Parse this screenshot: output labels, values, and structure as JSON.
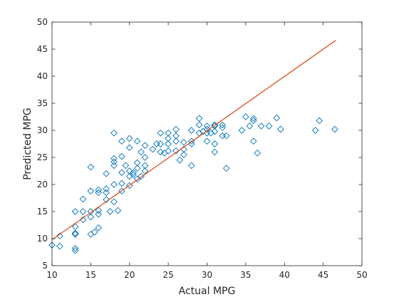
{
  "chart_data": {
    "type": "scatter",
    "title": "",
    "xlabel": "Actual MPG",
    "ylabel": "Predicted MPG",
    "xlim": [
      10,
      50
    ],
    "ylim": [
      5,
      50
    ],
    "xticks": [
      10,
      15,
      20,
      25,
      30,
      35,
      40,
      45,
      50
    ],
    "yticks": [
      5,
      10,
      15,
      20,
      25,
      30,
      35,
      40,
      45,
      50
    ],
    "grid": false,
    "legend": "none",
    "colors": {
      "points": "#0072BD",
      "fit_line": "#D95319",
      "axes": "#262626"
    },
    "series": [
      {
        "kind": "markers",
        "marker": "diamond",
        "points": [
          [
            10,
            8.8
          ],
          [
            11,
            8.6
          ],
          [
            11,
            10.5
          ],
          [
            13,
            7.8
          ],
          [
            13,
            8.2
          ],
          [
            13,
            10.8
          ],
          [
            13,
            11
          ],
          [
            13,
            12.2
          ],
          [
            13,
            15
          ],
          [
            14,
            13.5
          ],
          [
            14,
            15
          ],
          [
            14,
            17.3
          ],
          [
            15,
            10.8
          ],
          [
            15,
            14
          ],
          [
            15,
            15
          ],
          [
            15,
            18.8
          ],
          [
            15,
            23.2
          ],
          [
            15.5,
            11.2
          ],
          [
            16,
            12
          ],
          [
            16,
            14.5
          ],
          [
            16,
            15.2
          ],
          [
            16,
            18.5
          ],
          [
            16,
            19
          ],
          [
            17,
            17.2
          ],
          [
            17,
            18.5
          ],
          [
            17,
            19.2
          ],
          [
            17,
            22
          ],
          [
            17.5,
            15
          ],
          [
            18,
            16.8
          ],
          [
            18,
            20
          ],
          [
            18,
            23.5
          ],
          [
            18,
            24.2
          ],
          [
            18,
            24.8
          ],
          [
            18,
            29.5
          ],
          [
            18.5,
            15.2
          ],
          [
            19,
            18.8
          ],
          [
            19,
            20.2
          ],
          [
            19,
            22.2
          ],
          [
            19,
            25.2
          ],
          [
            19,
            28
          ],
          [
            19.5,
            23.5
          ],
          [
            20,
            19.8
          ],
          [
            20,
            21.5
          ],
          [
            20,
            22.5
          ],
          [
            20,
            26.8
          ],
          [
            20,
            28.5
          ],
          [
            20.5,
            21.8
          ],
          [
            20.5,
            22.2
          ],
          [
            21,
            21
          ],
          [
            21,
            23
          ],
          [
            21,
            24
          ],
          [
            21,
            28
          ],
          [
            21.5,
            21.5
          ],
          [
            21.5,
            26
          ],
          [
            22,
            22.5
          ],
          [
            22,
            23.5
          ],
          [
            22,
            25
          ],
          [
            22,
            27.2
          ],
          [
            23,
            26.5
          ],
          [
            23.5,
            27.5
          ],
          [
            24,
            26
          ],
          [
            24,
            27.5
          ],
          [
            24,
            29.5
          ],
          [
            24.5,
            25.8
          ],
          [
            25,
            26.2
          ],
          [
            25,
            27.5
          ],
          [
            25,
            28.5
          ],
          [
            25,
            29.5
          ],
          [
            26,
            26.2
          ],
          [
            26,
            28
          ],
          [
            26,
            29
          ],
          [
            26,
            30.2
          ],
          [
            26.5,
            24.5
          ],
          [
            27,
            25.5
          ],
          [
            27,
            26.5
          ],
          [
            27,
            27.8
          ],
          [
            28,
            23.5
          ],
          [
            28,
            27.5
          ],
          [
            28,
            28
          ],
          [
            28,
            30
          ],
          [
            29,
            29.5
          ],
          [
            29,
            31
          ],
          [
            29,
            32.2
          ],
          [
            29.5,
            29.8
          ],
          [
            30,
            28
          ],
          [
            30,
            29.5
          ],
          [
            30,
            30.2
          ],
          [
            30,
            30.8
          ],
          [
            30.5,
            29.5
          ],
          [
            31,
            26
          ],
          [
            31,
            27.5
          ],
          [
            31,
            29.8
          ],
          [
            31,
            30.8
          ],
          [
            31,
            31
          ],
          [
            32,
            29
          ],
          [
            32,
            30.5
          ],
          [
            32,
            31
          ],
          [
            32.5,
            29
          ],
          [
            32.5,
            23
          ],
          [
            34.5,
            30
          ],
          [
            35,
            32.5
          ],
          [
            35.5,
            30.8
          ],
          [
            36,
            28
          ],
          [
            36,
            31.8
          ],
          [
            36,
            32.2
          ],
          [
            36.5,
            25.8
          ],
          [
            37,
            30.8
          ],
          [
            38,
            30.8
          ],
          [
            39,
            32.3
          ],
          [
            39.5,
            30.2
          ],
          [
            44,
            30
          ],
          [
            44.5,
            31.8
          ],
          [
            46.5,
            30.2
          ]
        ]
      },
      {
        "kind": "fit-line",
        "points": [
          [
            10,
            9.8
          ],
          [
            46.6,
            46.6
          ]
        ]
      }
    ]
  }
}
